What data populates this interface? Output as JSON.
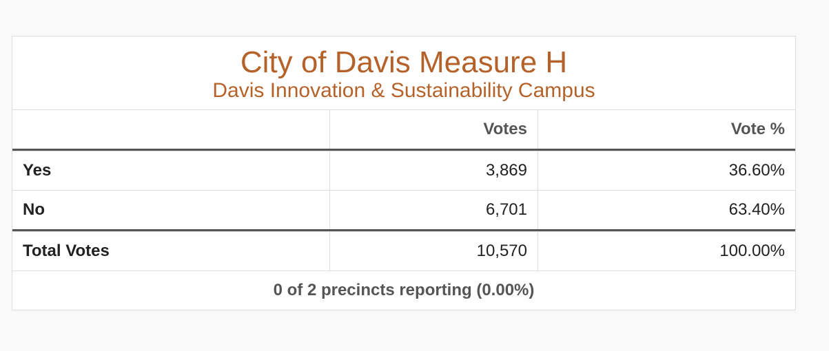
{
  "header": {
    "title": "City of Davis Measure H",
    "subtitle": "Davis Innovation & Sustainability Campus"
  },
  "table": {
    "columns": [
      "Votes",
      "Vote %"
    ],
    "rows": [
      [
        "Yes",
        "3,869",
        "36.60%"
      ],
      [
        "No",
        "6,701",
        "63.40%"
      ]
    ],
    "total": [
      "Total Votes",
      "10,570",
      "100.00%"
    ]
  },
  "footer": "0 of 2 precincts reporting (0.00%)"
}
